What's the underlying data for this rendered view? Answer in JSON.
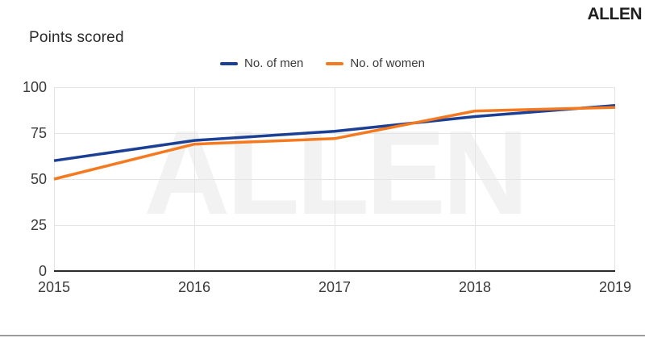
{
  "logo": "ALLEN",
  "title": "Points scored",
  "watermark": "ALLEN",
  "legend": {
    "items": [
      {
        "label": "No. of men",
        "color": "#1a3f94"
      },
      {
        "label": "No. of women",
        "color": "#f5791f"
      }
    ]
  },
  "chart_data": {
    "type": "line",
    "title": "Points scored",
    "x": [
      2015,
      2016,
      2017,
      2018,
      2019
    ],
    "series": [
      {
        "name": "No. of men",
        "color": "#1a3f94",
        "values": [
          60,
          71,
          76,
          84,
          90
        ]
      },
      {
        "name": "No. of women",
        "color": "#f5791f",
        "values": [
          50,
          69,
          72,
          87,
          89
        ]
      }
    ],
    "xlabel": "",
    "ylabel": "",
    "ylim": [
      0,
      100
    ],
    "yticks": [
      0,
      25,
      50,
      75,
      100
    ],
    "grid": true,
    "legend_position": "top-center"
  }
}
